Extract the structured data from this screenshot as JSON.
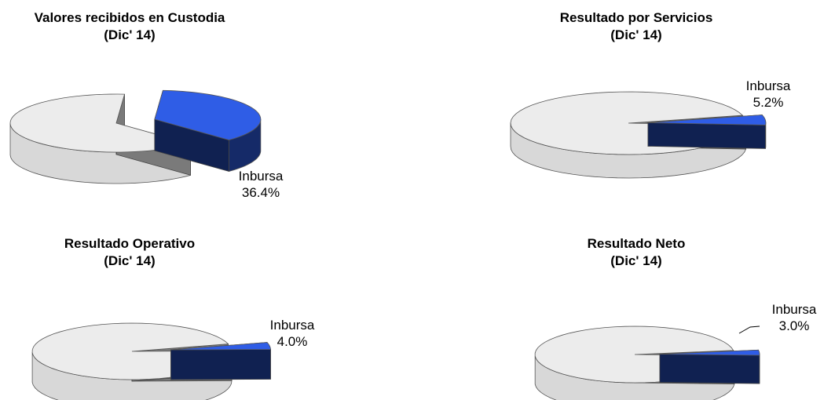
{
  "chart_data": [
    {
      "type": "pie",
      "title": "Valores recibidos en Custodia",
      "subtitle": "(Dic' 14)",
      "slices": [
        {
          "name": "Inbursa",
          "value": 36.4,
          "value_label": "36.4%",
          "color": "#2f5de6"
        },
        {
          "name": "",
          "value": 63.6,
          "value_label": "",
          "color": "#ececec"
        }
      ]
    },
    {
      "type": "pie",
      "title": "Resultado por Servicios",
      "subtitle": "(Dic' 14)",
      "slices": [
        {
          "name": "Inbursa",
          "value": 5.2,
          "value_label": "5.2%",
          "color": "#2f5de6"
        },
        {
          "name": "",
          "value": 94.8,
          "value_label": "",
          "color": "#ececec"
        }
      ]
    },
    {
      "type": "pie",
      "title": "Resultado Operativo",
      "subtitle": "(Dic' 14)",
      "slices": [
        {
          "name": "Inbursa",
          "value": 4.0,
          "value_label": "4.0%",
          "color": "#2f5de6"
        },
        {
          "name": "",
          "value": 96.0,
          "value_label": "",
          "color": "#ececec"
        }
      ]
    },
    {
      "type": "pie",
      "title": "Resultado Neto",
      "subtitle": "(Dic' 14)",
      "slices": [
        {
          "name": "Inbursa",
          "value": 3.0,
          "value_label": "3.0%",
          "color": "#2f5de6"
        },
        {
          "name": "",
          "value": 97.0,
          "value_label": "",
          "color": "#ececec"
        }
      ]
    }
  ]
}
